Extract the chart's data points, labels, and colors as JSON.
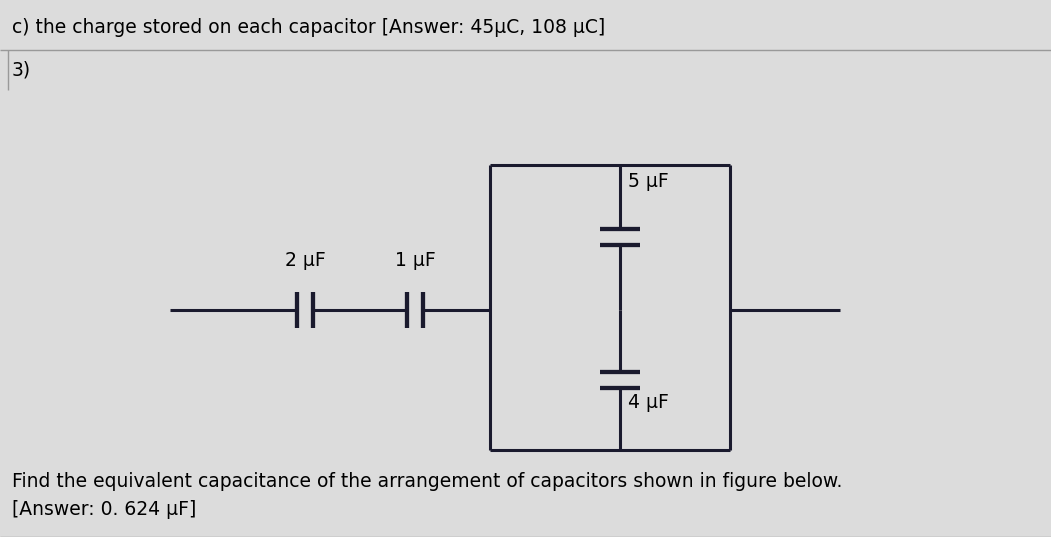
{
  "bg_color": "#dcdcdc",
  "line_color": "#1a1a2e",
  "text_color": "#000000",
  "title_line1": "c) the charge stored on each capacitor [Answer: 45μC, 108 μC]",
  "problem_num": "3)",
  "footer_line1": "Find the equivalent capacitance of the arrangement of capacitors shown in figure below.",
  "footer_line2": "[Answer: 0. 624 μF]",
  "cap_2uF_label": "2 μF",
  "cap_1uF_label": "1 μF",
  "cap_5uF_label": "5 μF",
  "cap_4uF_label": "4 μF",
  "lw": 2.2,
  "title_fontsize": 13.5,
  "label_fontsize": 13.5
}
